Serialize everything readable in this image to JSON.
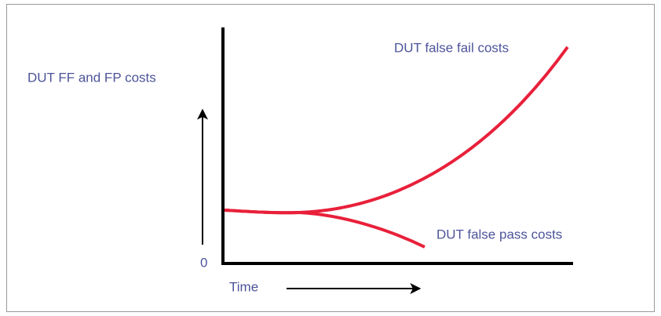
{
  "y_axis_label": "DUT FF and FP costs",
  "origin_label": "0",
  "x_axis_label": "Time",
  "false_fail_label": "DUT false fail costs",
  "false_pass_label": "DUT false pass costs"
}
